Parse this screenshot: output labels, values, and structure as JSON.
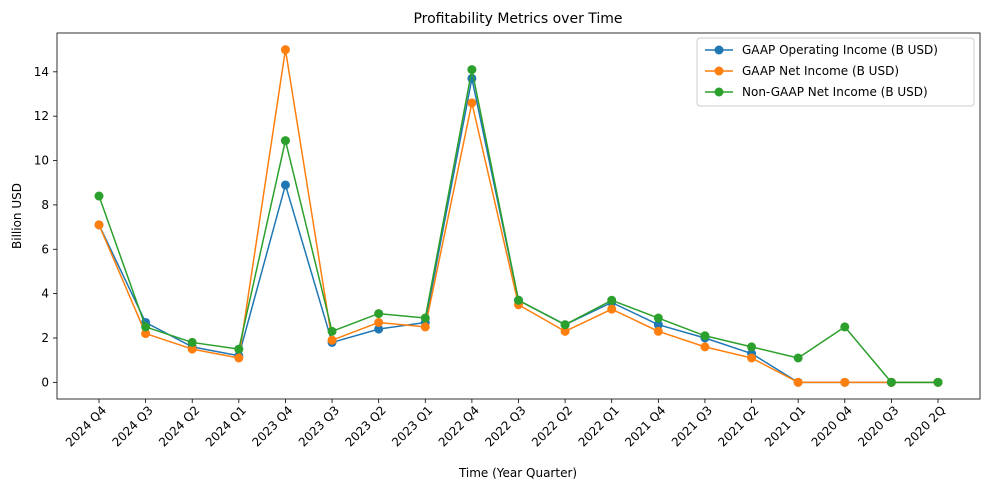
{
  "chart_data": {
    "type": "line",
    "title": "Profitability Metrics over Time",
    "xlabel": "Time (Year Quarter)",
    "ylabel": "Billion USD",
    "categories": [
      "2024 Q4",
      "2024 Q3",
      "2024 Q2",
      "2024 Q1",
      "2023 Q4",
      "2023 Q3",
      "2023 Q2",
      "2023 Q1",
      "2022 Q4",
      "2022 Q3",
      "2022 Q2",
      "2022 Q1",
      "2021 Q4",
      "2021 Q3",
      "2021 Q2",
      "2021 Q1",
      "2020 Q4",
      "2020 Q3",
      "2020 2Q"
    ],
    "yticks": [
      0,
      2,
      4,
      6,
      8,
      10,
      12,
      14
    ],
    "ylim": [
      -0.75,
      15.75
    ],
    "grid": false,
    "legend_position": "top-right",
    "series": [
      {
        "name": "GAAP Operating Income (B USD)",
        "color": "#1f77b4",
        "values": [
          7.1,
          2.7,
          1.6,
          1.2,
          8.9,
          1.8,
          2.4,
          2.7,
          13.7,
          3.7,
          2.6,
          3.6,
          2.6,
          2.0,
          1.3,
          0.0,
          0.0,
          0.0,
          0.0
        ]
      },
      {
        "name": "GAAP Net Income (B USD)",
        "color": "#ff7f0e",
        "values": [
          7.1,
          2.2,
          1.5,
          1.1,
          15.0,
          1.9,
          2.7,
          2.5,
          12.6,
          3.5,
          2.3,
          3.3,
          2.3,
          1.6,
          1.1,
          0.0,
          0.0,
          0.0,
          0.0
        ]
      },
      {
        "name": "Non-GAAP Net Income (B USD)",
        "color": "#2ca02c",
        "values": [
          8.4,
          2.5,
          1.8,
          1.5,
          10.9,
          2.3,
          3.1,
          2.9,
          14.1,
          3.7,
          2.6,
          3.7,
          2.9,
          2.1,
          1.6,
          1.1,
          2.5,
          0.0,
          0.0
        ]
      }
    ]
  }
}
